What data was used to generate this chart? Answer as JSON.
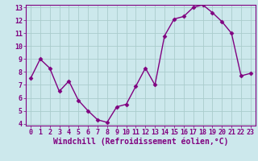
{
  "x": [
    0,
    1,
    2,
    3,
    4,
    5,
    6,
    7,
    8,
    9,
    10,
    11,
    12,
    13,
    14,
    15,
    16,
    17,
    18,
    19,
    20,
    21,
    22,
    23
  ],
  "y": [
    7.5,
    9.0,
    8.3,
    6.5,
    7.3,
    5.8,
    5.0,
    4.3,
    4.1,
    5.3,
    5.5,
    6.9,
    8.3,
    7.0,
    10.8,
    12.1,
    12.3,
    13.0,
    13.2,
    12.6,
    11.9,
    11.0,
    7.7,
    7.9
  ],
  "line_color": "#800080",
  "marker": "D",
  "marker_size": 2.5,
  "bg_color": "#cce8ec",
  "grid_color": "#aacccc",
  "xlabel": "Windchill (Refroidissement éolien,°C)",
  "ylim": [
    4,
    13
  ],
  "xlim": [
    -0.5,
    23.5
  ],
  "yticks": [
    4,
    5,
    6,
    7,
    8,
    9,
    10,
    11,
    12,
    13
  ],
  "xticks": [
    0,
    1,
    2,
    3,
    4,
    5,
    6,
    7,
    8,
    9,
    10,
    11,
    12,
    13,
    14,
    15,
    16,
    17,
    18,
    19,
    20,
    21,
    22,
    23
  ],
  "tick_label_fontsize": 6.0,
  "xlabel_fontsize": 7.0,
  "line_width": 1.0,
  "axis_color": "#800080"
}
